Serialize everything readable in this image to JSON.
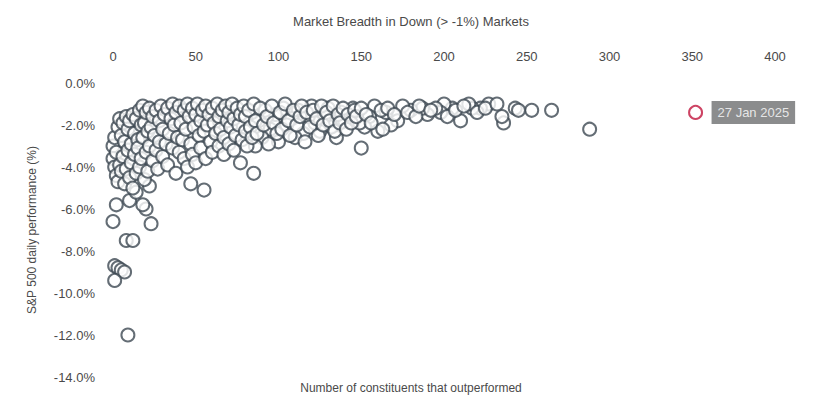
{
  "chart_data": {
    "type": "scatter",
    "title": "Market Breadth in Down (> -1%) Markets",
    "x_label": "Number of constituents that outperformed",
    "y_label": "S&P 500 daily performance (%)",
    "xlim": [
      0,
      400
    ],
    "xticks": [
      0,
      50,
      100,
      150,
      200,
      250,
      300,
      350,
      400
    ],
    "ylim": [
      -14,
      0
    ],
    "yticks": [
      {
        "value": -14,
        "label": "-14.0%"
      },
      {
        "value": -12,
        "label": "-12.0%"
      },
      {
        "value": -10,
        "label": "-10.0%"
      },
      {
        "value": -8,
        "label": "-8.0%"
      },
      {
        "value": -6,
        "label": "-6.0%"
      },
      {
        "value": -4,
        "label": "-4.0%"
      },
      {
        "value": -2,
        "label": "-2.0%"
      },
      {
        "value": 0,
        "label": "0.0%"
      }
    ],
    "grid": false,
    "series": [
      {
        "color": "#3d4953",
        "marker": "circle_open",
        "x": [
          0,
          2,
          1,
          3,
          5,
          7,
          1,
          9,
          8,
          12,
          23,
          20,
          18,
          10,
          14,
          22,
          47,
          55,
          85,
          150,
          288,
          265,
          253,
          243,
          245,
          236,
          235,
          227,
          222,
          217,
          215,
          210,
          205,
          200,
          198,
          195,
          190,
          187,
          180,
          175,
          172,
          168,
          165,
          160,
          158,
          155,
          152,
          149,
          145,
          140,
          138,
          135,
          132,
          130,
          128,
          125,
          122,
          120,
          118,
          115,
          112,
          110,
          108,
          105,
          103,
          100,
          98,
          95,
          92,
          90,
          88,
          86,
          84,
          0,
          0,
          1,
          1,
          2,
          2,
          3,
          3,
          4,
          4,
          5,
          5,
          6,
          6,
          7,
          7,
          8,
          8,
          9,
          9,
          10,
          10,
          11,
          11,
          12,
          12,
          13,
          13,
          14,
          14,
          15,
          15,
          16,
          16,
          17,
          17,
          18,
          18,
          19,
          19,
          20,
          20,
          21,
          21,
          22,
          22,
          23,
          24,
          24,
          25,
          26,
          26,
          27,
          28,
          28,
          29,
          30,
          30,
          31,
          32,
          33,
          33,
          34,
          35,
          36,
          36,
          37,
          38,
          38,
          39,
          40,
          40,
          41,
          42,
          43,
          43,
          44,
          45,
          45,
          46,
          47,
          48,
          48,
          49,
          50,
          50,
          51,
          52,
          53,
          53,
          54,
          55,
          56,
          56,
          57,
          58,
          59,
          60,
          60,
          61,
          62,
          63,
          64,
          64,
          65,
          66,
          67,
          67,
          68,
          69,
          70,
          70,
          71,
          72,
          73,
          73,
          74,
          75,
          76,
          77,
          77,
          78,
          79,
          80,
          80,
          81,
          82,
          83,
          84,
          85,
          86,
          87,
          89,
          91,
          93,
          94,
          96,
          97,
          99,
          101,
          102,
          104,
          106,
          107,
          109,
          111,
          113,
          114,
          116,
          117,
          119,
          121,
          123,
          124,
          126,
          127,
          129,
          131,
          133,
          134,
          136,
          137,
          139,
          141,
          142,
          144,
          146,
          147,
          150,
          153,
          156,
          162,
          163,
          166,
          170,
          178,
          183,
          185,
          192,
          202,
          207,
          212,
          220,
          225,
          232
        ],
        "values": [
          -6.6,
          -5.8,
          -8.7,
          -8.8,
          -8.9,
          -9.0,
          -9.4,
          -12.0,
          -7.5,
          -7.5,
          -6.7,
          -6.0,
          -5.8,
          -5.6,
          -5.2,
          -4.9,
          -4.8,
          -5.1,
          -4.3,
          -3.1,
          -2.2,
          -1.3,
          -1.3,
          -1.2,
          -1.3,
          -1.9,
          -1.6,
          -1.0,
          -1.2,
          -1.2,
          -1.0,
          -1.8,
          -1.2,
          -1.0,
          -1.4,
          -1.2,
          -1.5,
          -1.2,
          -1.3,
          -1.1,
          -1.8,
          -2.0,
          -1.4,
          -2.3,
          -1.1,
          -1.6,
          -2.1,
          -1.9,
          -1.2,
          -1.8,
          -1.4,
          -2.6,
          -2.1,
          -1.2,
          -1.6,
          -2.3,
          -1.9,
          -1.1,
          -1.6,
          -2.4,
          -1.3,
          -2.6,
          -1.7,
          -2.0,
          -1.2,
          -2.8,
          -1.5,
          -2.2,
          -1.3,
          -2.6,
          -1.8,
          -3.0,
          -1.4,
          -3.0,
          -3.6,
          -4.0,
          -2.6,
          -4.4,
          -3.3,
          -4.7,
          -2.1,
          -1.7,
          -3.9,
          -4.2,
          -2.5,
          -1.9,
          -3.5,
          -4.8,
          -2.8,
          -1.6,
          -4.1,
          -3.2,
          -2.2,
          -1.8,
          -4.5,
          -2.9,
          -3.8,
          -1.5,
          -5.0,
          -2.4,
          -3.4,
          -4.3,
          -1.7,
          -2.7,
          -3.1,
          -1.3,
          -4.0,
          -2.0,
          -3.6,
          -1.1,
          -2.6,
          -4.6,
          -1.9,
          -3.3,
          -1.4,
          -2.3,
          -4.2,
          -1.2,
          -3.0,
          -2.1,
          -3.7,
          -1.6,
          -2.5,
          -1.3,
          -3.2,
          -4.1,
          -1.8,
          -2.8,
          -1.1,
          -3.5,
          -2.2,
          -1.5,
          -2.9,
          -1.2,
          -3.9,
          -2.4,
          -1.7,
          -3.1,
          -1.0,
          -2.0,
          -4.3,
          -1.4,
          -2.6,
          -1.1,
          -3.3,
          -1.9,
          -2.7,
          -1.3,
          -3.6,
          -2.2,
          -1.0,
          -4.0,
          -1.6,
          -2.9,
          -1.2,
          -3.4,
          -2.1,
          -1.5,
          -3.8,
          -1.0,
          -2.5,
          -1.8,
          -3.1,
          -1.3,
          -2.3,
          -3.6,
          -1.1,
          -2.0,
          -1.5,
          -2.8,
          -1.2,
          -3.3,
          -1.9,
          -2.4,
          -1.0,
          -3.0,
          -1.6,
          -2.2,
          -1.3,
          -3.4,
          -2.6,
          -1.1,
          -1.8,
          -2.9,
          -1.4,
          -2.1,
          -1.0,
          -3.2,
          -1.7,
          -2.5,
          -1.2,
          -2.0,
          -3.8,
          -1.5,
          -2.7,
          -1.1,
          -2.3,
          -1.6,
          -3.0,
          -1.3,
          -2.1,
          -2.6,
          -1.0,
          -1.8,
          -2.4,
          -1.2,
          -2.0,
          -1.6,
          -2.9,
          -1.1,
          -1.9,
          -2.4,
          -1.4,
          -2.2,
          -1.0,
          -1.8,
          -2.5,
          -1.3,
          -2.0,
          -1.6,
          -1.1,
          -2.8,
          -1.4,
          -2.1,
          -1.3,
          -1.7,
          -2.5,
          -1.1,
          -2.0,
          -1.4,
          -1.8,
          -1.1,
          -2.3,
          -1.5,
          -1.9,
          -1.2,
          -2.2,
          -1.5,
          -1.9,
          -1.3,
          -1.6,
          -1.2,
          -1.5,
          -1.9,
          -1.3,
          -2.2,
          -1.2,
          -1.5,
          -1.4,
          -1.6,
          -1.1,
          -1.3,
          -1.6,
          -1.3,
          -1.1,
          -1.4,
          -1.2,
          -1.0
        ]
      },
      {
        "color": "#c0143c",
        "marker": "circle_open",
        "x": [
          352
        ],
        "values": [
          -1.4
        ]
      }
    ],
    "annotations": [
      {
        "text": "27 Jan 2025",
        "x": 352,
        "y": -1.4
      }
    ]
  }
}
